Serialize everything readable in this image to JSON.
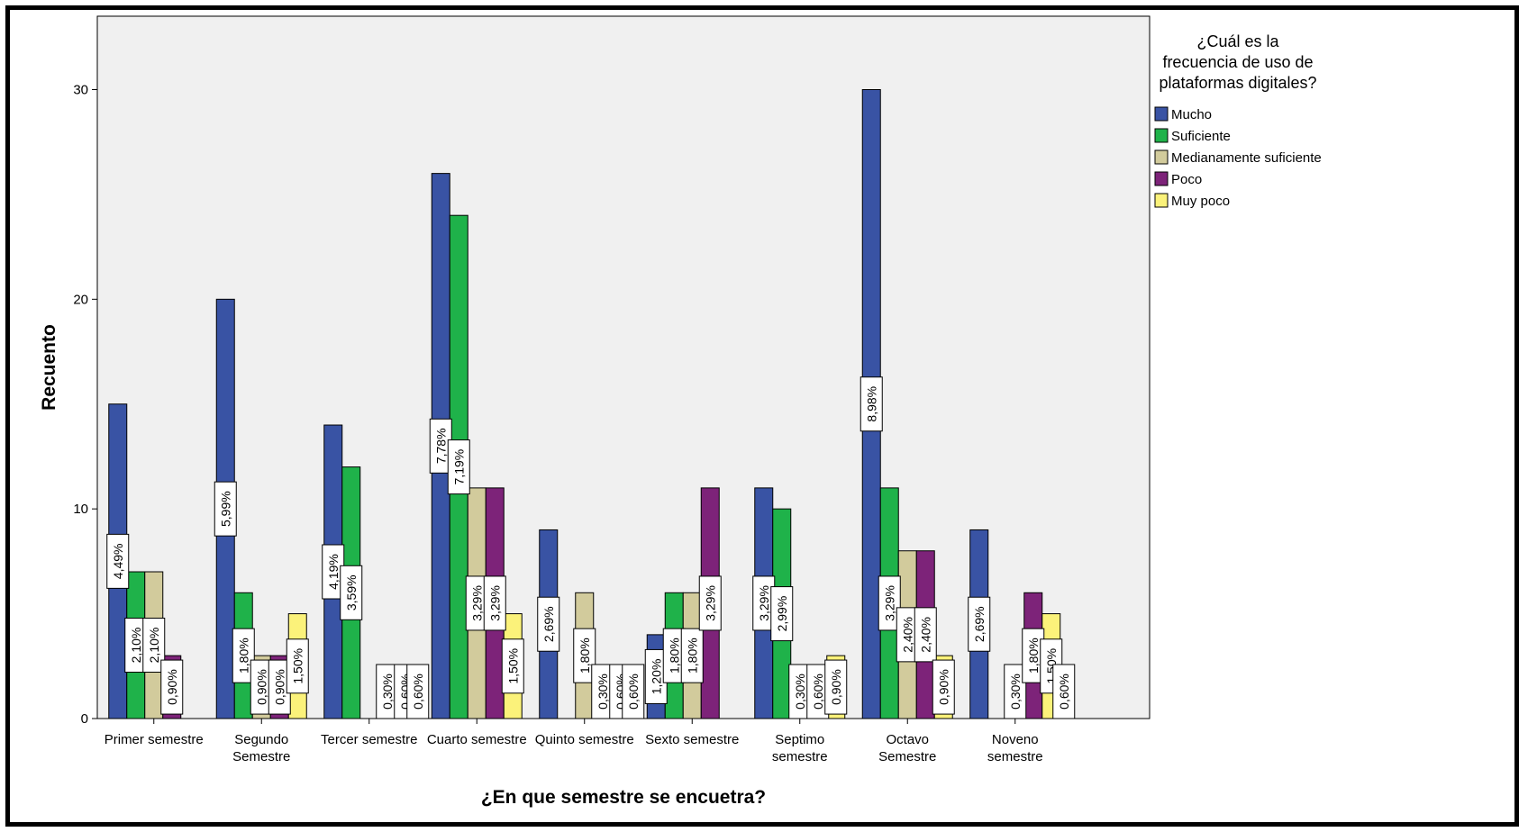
{
  "chart_data": {
    "type": "bar",
    "xlabel": "¿En que semestre se encuetra?",
    "ylabel": "Recuento",
    "ylim": [
      0,
      33.5
    ],
    "yticks": [
      0,
      10,
      20,
      30
    ],
    "grid": false,
    "legend_title_lines": [
      "¿Cuál es la",
      "frecuencia de uso de",
      "plataformas digitales?"
    ],
    "legend_position": "top-right",
    "categories": [
      [
        "Primer semestre"
      ],
      [
        "Segundo",
        "Semestre"
      ],
      [
        "Tercer semestre"
      ],
      [
        "Cuarto semestre"
      ],
      [
        "Quinto semestre"
      ],
      [
        "Sexto semestre"
      ],
      [
        "Septimo",
        "semestre"
      ],
      [
        "Octavo",
        "Semestre"
      ],
      [
        "Noveno",
        "semestre"
      ]
    ],
    "series": [
      {
        "name": "Mucho",
        "color": "#3953a4",
        "values": [
          15,
          20,
          14,
          26,
          9,
          4,
          11,
          30,
          9
        ],
        "labels": [
          "4,49%",
          "5,99%",
          "4,19%",
          "7,78%",
          "2,69%",
          "1,20%",
          "3,29%",
          "8,98%",
          "2,69%"
        ]
      },
      {
        "name": "Suficiente",
        "color": "#1fb24a",
        "values": [
          7,
          6,
          12,
          24,
          0,
          6,
          10,
          11,
          0
        ],
        "labels": [
          "2,10%",
          "1,80%",
          "3,59%",
          "7,19%",
          "",
          "1,80%",
          "2,99%",
          "3,29%",
          ""
        ]
      },
      {
        "name": "Medianamente suficiente",
        "color": "#d2cb9c",
        "values": [
          7,
          3,
          0,
          11,
          6,
          6,
          1,
          8,
          1
        ],
        "labels": [
          "2,10%",
          "0,90%",
          "",
          "3,29%",
          "1,80%",
          "1,80%",
          "0,30%",
          "2,40%",
          "0,30%"
        ]
      },
      {
        "name": "Poco",
        "color": "#7d2379",
        "values": [
          3,
          3,
          1,
          11,
          1,
          11,
          2,
          8,
          6
        ],
        "labels": [
          "0,90%",
          "0,90%",
          "0,30%",
          "3,29%",
          "0,30%",
          "3,29%",
          "0,60%",
          "2,40%",
          "1,80%"
        ]
      },
      {
        "name": "Muy poco",
        "color": "#fbf27a",
        "values": [
          0,
          5,
          2,
          5,
          2,
          0,
          3,
          3,
          5
        ],
        "labels": [
          "",
          "1,50%",
          "0,60%",
          "1,50%",
          "0,60%",
          "",
          "0,90%",
          "0,90%",
          "1,50%"
        ]
      }
    ],
    "extra_labels": [
      {
        "category": 2,
        "text": "0,60%"
      },
      {
        "category": 4,
        "text": "0,60%"
      },
      {
        "category": 8,
        "text": "0,60%"
      }
    ]
  }
}
